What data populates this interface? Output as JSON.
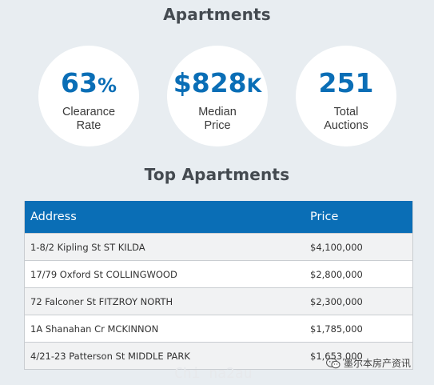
{
  "section_title": "Apartments",
  "stats": [
    {
      "number": "63",
      "suffix": "%",
      "label_line1": "Clearance",
      "label_line2": "Rate"
    },
    {
      "number": "$828",
      "suffix": "K",
      "label_line1": "Median",
      "label_line2": "Price"
    },
    {
      "number": "251",
      "suffix": "",
      "label_line1": "Total",
      "label_line2": "Auctions"
    }
  ],
  "top_title": "Top Apartments",
  "table": {
    "headers": {
      "address": "Address",
      "price": "Price"
    },
    "rows": [
      {
        "address": "1-8/2 Kipling St ST KILDA",
        "price": "$4,100,000"
      },
      {
        "address": "17/79 Oxford St COLLINGWOOD",
        "price": "$2,800,000"
      },
      {
        "address": "72 Falconer St FITZROY NORTH",
        "price": "$2,300,000"
      },
      {
        "address": "1A Shanahan Cr MCKINNON",
        "price": "$1,785,000"
      },
      {
        "address": "4/21-23 Patterson St MIDDLE PARK",
        "price": "$1,653,000"
      }
    ]
  },
  "watermark": "Chi na2au",
  "badge": {
    "text": "墨尔本房产资讯",
    "icon": "wechat-icon"
  }
}
